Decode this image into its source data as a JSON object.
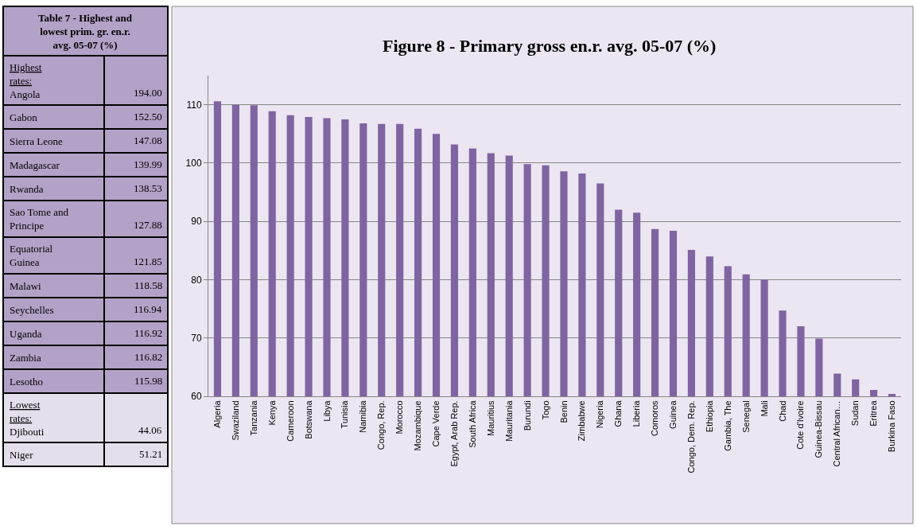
{
  "chart_data": [
    {
      "type": "other",
      "title": "Table 7 - Highest and lowest prim. gr. en.r. avg. 05-07 (%)",
      "annotations": [
        "Highest rates:",
        "Lowest rates:"
      ],
      "categories": [
        "Angola",
        "Gabon",
        "Sierra Leone",
        "Madagascar",
        "Rwanda",
        "Sao Tome and Principe",
        "Equatorial Guinea",
        "Malawi",
        "Seychelles",
        "Uganda",
        "Zambia",
        "Lesotho",
        "Djibouti",
        "Niger"
      ],
      "value_labels": [
        "194.00",
        "152.50",
        "147.08",
        "139.99",
        "138.53",
        "127.88",
        "121.85",
        "118.58",
        "116.94",
        "116.92",
        "116.82",
        "115.98",
        "44.06",
        "51.21"
      ],
      "colors": [
        "#b3a2c7",
        "#b3a2c7",
        "#b3a2c7",
        "#b3a2c7",
        "#b3a2c7",
        "#b3a2c7",
        "#b3a2c7",
        "#b3a2c7",
        "#b3a2c7",
        "#b3a2c7",
        "#b3a2c7",
        "#b3a2c7",
        "#e5dfec",
        "#e5dfec"
      ]
    },
    {
      "type": "bar",
      "title": "Figure 8 - Primary gross en.r. avg. 05-07 (%)",
      "categories": [
        "Algeria",
        "Swaziland",
        "Tanzania",
        "Kenya",
        "Cameroon",
        "Botswana",
        "Libya",
        "Tunisia",
        "Namibia",
        "Congo, Rep.",
        "Morocco",
        "Mozambique",
        "Cape Verde",
        "Egypt, Arab Rep.",
        "South Africa",
        "Mauritius",
        "Mauritania",
        "Burundi",
        "Togo",
        "Benin",
        "Zimbabwe",
        "Nigeria",
        "Ghana",
        "Liberia",
        "Comoros",
        "Guinea",
        "Congo, Dem. Rep.",
        "Ethiopia",
        "Gambia, The",
        "Senegal",
        "Mali",
        "Chad",
        "Cote d'Ivoire",
        "Guinea-Bissau",
        "Central African…",
        "Sudan",
        "Eritrea",
        "Burkina Faso"
      ],
      "values": [
        110.6,
        110.0,
        109.9,
        108.9,
        108.2,
        107.9,
        107.7,
        107.5,
        106.8,
        106.7,
        106.7,
        105.9,
        105.0,
        103.2,
        102.5,
        101.7,
        101.3,
        99.8,
        99.6,
        98.6,
        98.2,
        96.5,
        92.0,
        91.5,
        88.7,
        88.4,
        85.1,
        84.0,
        82.3,
        80.9,
        80.0,
        74.7,
        72.0,
        69.9,
        63.9,
        62.9,
        61.1,
        60.4
      ],
      "color": "#8064a2",
      "ylim": [
        60,
        115
      ],
      "yticks": [
        60,
        70,
        80,
        90,
        100,
        110
      ],
      "grid": "y"
    }
  ]
}
